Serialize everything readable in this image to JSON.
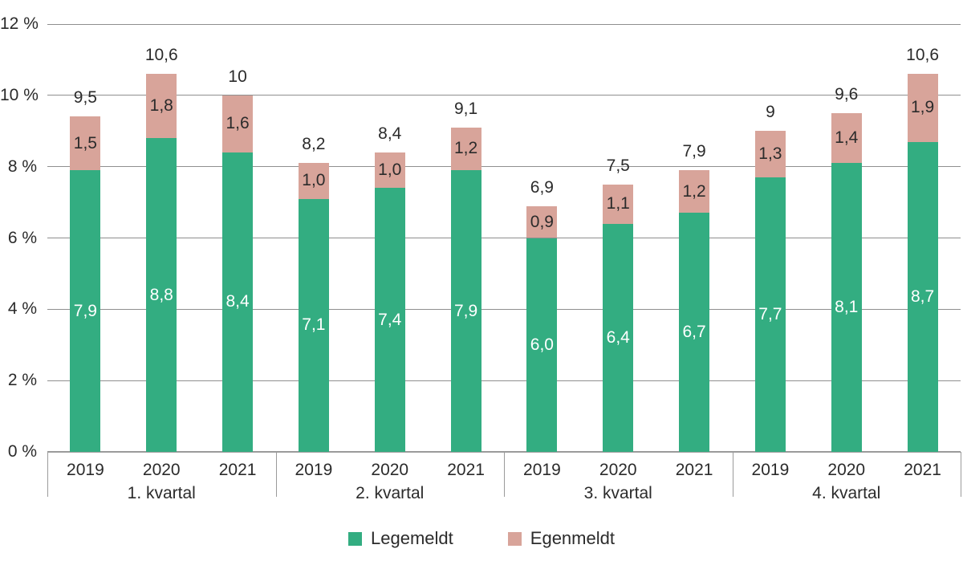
{
  "chart_data": {
    "type": "bar",
    "stacked": true,
    "title": "",
    "unit": "%",
    "ylim": [
      0,
      12
    ],
    "grid": true,
    "y_ticks": [
      {
        "value": 0,
        "label": "0 %"
      },
      {
        "value": 2,
        "label": "2 %"
      },
      {
        "value": 4,
        "label": "4 %"
      },
      {
        "value": 6,
        "label": "6 %"
      },
      {
        "value": 8,
        "label": "8 %"
      },
      {
        "value": 10,
        "label": "10 %"
      },
      {
        "value": 12,
        "label": "12 %"
      }
    ],
    "series_names": [
      "Legemeldt",
      "Egenmeldt"
    ],
    "groups": [
      {
        "label": "1. kvartal",
        "bars": [
          {
            "year": "2019",
            "legemeldt": 7.9,
            "egenmeldt": 1.5,
            "legemeldt_label": "7,9",
            "egenmeldt_label": "1,5",
            "total_label": "9,5"
          },
          {
            "year": "2020",
            "legemeldt": 8.8,
            "egenmeldt": 1.8,
            "legemeldt_label": "8,8",
            "egenmeldt_label": "1,8",
            "total_label": "10,6"
          },
          {
            "year": "2021",
            "legemeldt": 8.4,
            "egenmeldt": 1.6,
            "legemeldt_label": "8,4",
            "egenmeldt_label": "1,6",
            "total_label": "10"
          }
        ]
      },
      {
        "label": "2. kvartal",
        "bars": [
          {
            "year": "2019",
            "legemeldt": 7.1,
            "egenmeldt": 1.0,
            "legemeldt_label": "7,1",
            "egenmeldt_label": "1,0",
            "total_label": "8,2"
          },
          {
            "year": "2020",
            "legemeldt": 7.4,
            "egenmeldt": 1.0,
            "legemeldt_label": "7,4",
            "egenmeldt_label": "1,0",
            "total_label": "8,4"
          },
          {
            "year": "2021",
            "legemeldt": 7.9,
            "egenmeldt": 1.2,
            "legemeldt_label": "7,9",
            "egenmeldt_label": "1,2",
            "total_label": "9,1"
          }
        ]
      },
      {
        "label": "3. kvartal",
        "bars": [
          {
            "year": "2019",
            "legemeldt": 6.0,
            "egenmeldt": 0.9,
            "legemeldt_label": "6,0",
            "egenmeldt_label": "0,9",
            "total_label": "6,9"
          },
          {
            "year": "2020",
            "legemeldt": 6.4,
            "egenmeldt": 1.1,
            "legemeldt_label": "6,4",
            "egenmeldt_label": "1,1",
            "total_label": "7,5"
          },
          {
            "year": "2021",
            "legemeldt": 6.7,
            "egenmeldt": 1.2,
            "legemeldt_label": "6,7",
            "egenmeldt_label": "1,2",
            "total_label": "7,9"
          }
        ]
      },
      {
        "label": "4. kvartal",
        "bars": [
          {
            "year": "2019",
            "legemeldt": 7.7,
            "egenmeldt": 1.3,
            "legemeldt_label": "7,7",
            "egenmeldt_label": "1,3",
            "total_label": "9"
          },
          {
            "year": "2020",
            "legemeldt": 8.1,
            "egenmeldt": 1.4,
            "legemeldt_label": "8,1",
            "egenmeldt_label": "1,4",
            "total_label": "9,6"
          },
          {
            "year": "2021",
            "legemeldt": 8.7,
            "egenmeldt": 1.9,
            "legemeldt_label": "8,7",
            "egenmeldt_label": "1,9",
            "total_label": "10,6"
          }
        ]
      }
    ],
    "legend": [
      {
        "label": "Legemeldt",
        "color": "#33AD81"
      },
      {
        "label": "Egenmeldt",
        "color": "#D8A49A"
      }
    ],
    "colors": {
      "legemeldt": "#33AD81",
      "egenmeldt": "#D8A49A",
      "legemeldt_label_text": "#ffffff",
      "egenmeldt_label_text": "#2b2b2b",
      "gridline": "#8f8f8f",
      "text": "#2b2b2b"
    },
    "legend_position": "bottom-center"
  }
}
